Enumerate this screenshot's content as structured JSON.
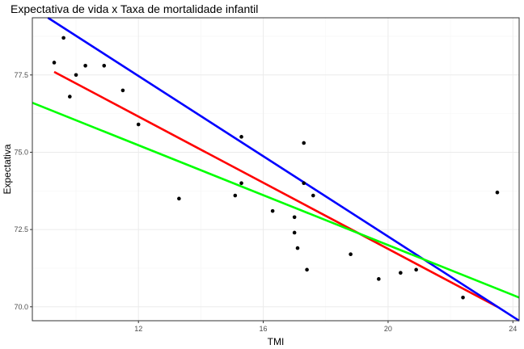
{
  "chart_data": {
    "type": "scatter",
    "title": "Expectativa de vida x Taxa de mortalidade infantil",
    "xlabel": "TMI",
    "ylabel": "Expectativa",
    "xlim": [
      8.6,
      24.2
    ],
    "ylim": [
      69.55,
      79.35
    ],
    "x_ticks": [
      12,
      16,
      20,
      24
    ],
    "x_tick_labels": [
      "12",
      "16",
      "20",
      "24"
    ],
    "y_ticks": [
      70,
      72.5,
      75,
      77.5
    ],
    "y_tick_labels": [
      "70.0",
      "72.5",
      "75.0",
      "77.5"
    ],
    "grid": true,
    "points": [
      {
        "x": 9.3,
        "y": 77.9
      },
      {
        "x": 9.6,
        "y": 78.7
      },
      {
        "x": 9.8,
        "y": 76.8
      },
      {
        "x": 10.0,
        "y": 77.5
      },
      {
        "x": 10.3,
        "y": 77.8
      },
      {
        "x": 10.9,
        "y": 77.8
      },
      {
        "x": 11.5,
        "y": 77.0
      },
      {
        "x": 12.0,
        "y": 75.9
      },
      {
        "x": 13.3,
        "y": 73.5
      },
      {
        "x": 15.1,
        "y": 73.6
      },
      {
        "x": 15.3,
        "y": 74.0
      },
      {
        "x": 15.3,
        "y": 75.5
      },
      {
        "x": 16.3,
        "y": 73.1
      },
      {
        "x": 17.0,
        "y": 72.9
      },
      {
        "x": 17.0,
        "y": 72.4
      },
      {
        "x": 17.1,
        "y": 71.9
      },
      {
        "x": 17.3,
        "y": 75.3
      },
      {
        "x": 17.3,
        "y": 74.0
      },
      {
        "x": 17.4,
        "y": 71.2
      },
      {
        "x": 17.6,
        "y": 73.6
      },
      {
        "x": 18.8,
        "y": 71.7
      },
      {
        "x": 19.7,
        "y": 70.9
      },
      {
        "x": 20.4,
        "y": 71.1
      },
      {
        "x": 20.9,
        "y": 71.2
      },
      {
        "x": 22.4,
        "y": 70.3
      },
      {
        "x": 23.5,
        "y": 73.7
      }
    ],
    "lines": [
      {
        "color": "#ff0000",
        "x": [
          9.3,
          23.5
        ],
        "y": [
          77.6,
          70.0
        ]
      },
      {
        "color": "#0000ff",
        "x": [
          9.1,
          24.2
        ],
        "y": [
          79.35,
          69.55
        ]
      },
      {
        "color": "#00ff00",
        "x": [
          8.6,
          24.2
        ],
        "y": [
          76.6,
          70.3
        ]
      }
    ]
  }
}
